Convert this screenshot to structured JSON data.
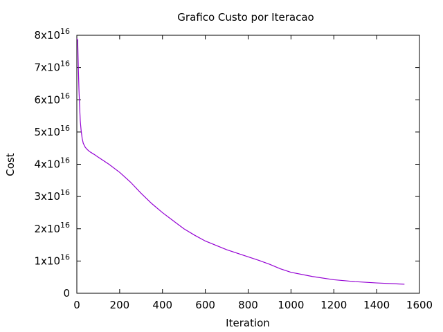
{
  "chart_data": {
    "type": "line",
    "title": "Grafico Custo por Iteracao",
    "xlabel": "Iteration",
    "ylabel": "Cost",
    "xlim": [
      0,
      1600
    ],
    "ylim": [
      0,
      8e+16
    ],
    "x_ticks": [
      0,
      200,
      400,
      600,
      800,
      1000,
      1200,
      1400,
      1600
    ],
    "x_tick_labels": [
      "0",
      "200",
      "400",
      "600",
      "800",
      "1000",
      "1200",
      "1400",
      "1600"
    ],
    "y_ticks": [
      0,
      1e+16,
      2e+16,
      3e+16,
      4e+16,
      5e+16,
      6e+16,
      7e+16,
      8e+16
    ],
    "y_tick_labels": [
      {
        "mantissa": "0",
        "exponent": ""
      },
      {
        "mantissa": "1x10",
        "exponent": "16"
      },
      {
        "mantissa": "2x10",
        "exponent": "16"
      },
      {
        "mantissa": "3x10",
        "exponent": "16"
      },
      {
        "mantissa": "4x10",
        "exponent": "16"
      },
      {
        "mantissa": "5x10",
        "exponent": "16"
      },
      {
        "mantissa": "6x10",
        "exponent": "16"
      },
      {
        "mantissa": "7x10",
        "exponent": "16"
      },
      {
        "mantissa": "8x10",
        "exponent": "16"
      }
    ],
    "grid": false,
    "legend": false,
    "line_color": "#9400d3",
    "series": [
      {
        "x": [
          0,
          4,
          7,
          10,
          13,
          16,
          20,
          25,
          30,
          40,
          50,
          60,
          80,
          100,
          150,
          200,
          250,
          300,
          350,
          400,
          450,
          500,
          550,
          600,
          700,
          800,
          850,
          900,
          950,
          1000,
          1100,
          1200,
          1300,
          1400,
          1500,
          1530
        ],
        "y": [
          7.9e+16,
          7.85e+16,
          7e+16,
          6.3e+16,
          5.8e+16,
          5.35e+16,
          5.05e+16,
          4.8e+16,
          4.65e+16,
          4.52e+16,
          4.45e+16,
          4.39e+16,
          4.31e+16,
          4.22e+16,
          4e+16,
          3.75e+16,
          3.45e+16,
          3.1e+16,
          2.78e+16,
          2.5e+16,
          2.25e+16,
          2e+16,
          1.8e+16,
          1.62e+16,
          1.35e+16,
          1.13e+16,
          1.02e+16,
          9000000000000000.0,
          7600000000000000.0,
          6500000000000000.0,
          5200000000000000.0,
          4200000000000000.0,
          3600000000000000.0,
          3200000000000000.0,
          2900000000000000.0,
          2800000000000000.0
        ]
      }
    ]
  }
}
